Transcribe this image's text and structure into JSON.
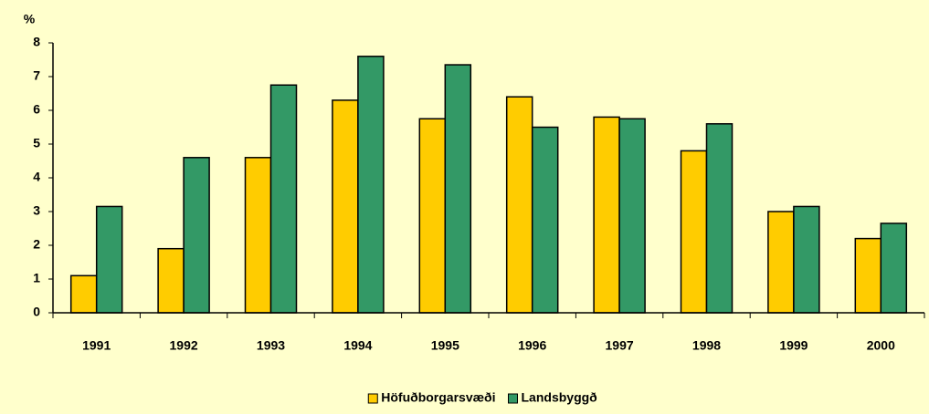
{
  "chart_data": {
    "type": "bar",
    "ylabel": "%",
    "categories": [
      "1991",
      "1992",
      "1993",
      "1994",
      "1995",
      "1996",
      "1997",
      "1998",
      "1999",
      "2000"
    ],
    "series": [
      {
        "name": "Höfuðborgarsvæði",
        "color": "#ffcc00",
        "values": [
          1.1,
          1.9,
          4.6,
          6.3,
          5.75,
          6.4,
          5.8,
          4.8,
          3.0,
          2.2
        ]
      },
      {
        "name": "Landsbyggð",
        "color": "#339966",
        "values": [
          3.15,
          4.6,
          6.75,
          7.6,
          7.35,
          5.5,
          5.75,
          5.6,
          3.15,
          2.65
        ]
      }
    ],
    "ylim": [
      0,
      8
    ],
    "yticks": [
      0,
      1,
      2,
      3,
      4,
      5,
      6,
      7,
      8
    ],
    "grid": false,
    "legend": "bottom"
  }
}
